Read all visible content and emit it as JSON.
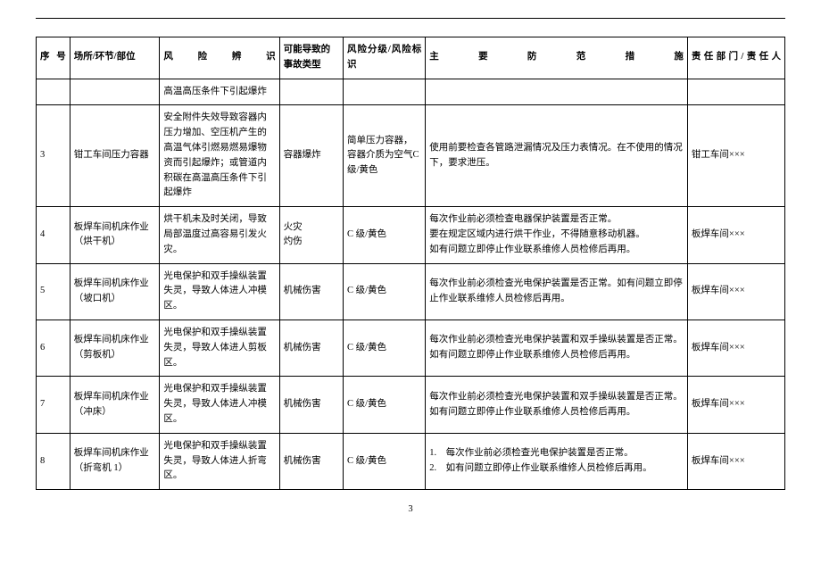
{
  "headers": {
    "seq": "序号",
    "place": "场所/环节/部位",
    "risk": "风险辨识",
    "accident": "可能导致的事故类型",
    "level": "风险分级/风险标识",
    "measure": "主要防范措施",
    "dept": "责任部门/责任人"
  },
  "rows": [
    {
      "seq": "",
      "place": "",
      "risk": "高温高压条件下引起爆炸",
      "accident": "",
      "level": "",
      "measure": "",
      "dept": ""
    },
    {
      "seq": "3",
      "place": "钳工车间压力容器",
      "risk": "安全附件失效导致容器内压力增加、空压机产生的高温气体引燃易燃易爆物资而引起爆炸；或管道内积碳在高温高压条件下引起爆炸",
      "accident": "容器爆炸",
      "level": "简单压力容器，容器介质为空气C 级/黄色",
      "measure": "使用前要检查各管路泄漏情况及压力表情况。在不使用的情况下，要求泄压。",
      "dept": "钳工车间×××"
    },
    {
      "seq": "4",
      "place": "板焊车间机床作业（烘干机）",
      "risk": "烘干机未及时关闭，导致局部温度过高容易引发火灾。",
      "accident": "火灾\n灼伤",
      "level": "C 级/黄色",
      "measure": "每次作业前必须检查电器保护装置是否正常。\n要在规定区域内进行烘干作业，不得随意移动机器。\n如有问题立即停止作业联系维修人员检修后再用。",
      "dept": "板焊车间×××"
    },
    {
      "seq": "5",
      "place": "板焊车间机床作业（坡口机）",
      "risk": "光电保护和双手操纵装置失灵，导致人体进人冲模区。",
      "accident": "机械伤害",
      "level": "C 级/黄色",
      "measure": "每次作业前必须检查光电保护装置是否正常。如有问题立即停止作业联系维修人员检修后再用。",
      "dept": "板焊车间×××"
    },
    {
      "seq": "6",
      "place": "板焊车间机床作业（剪板机）",
      "risk": "光电保护和双手操纵装置失灵，导致人体进人剪板区。",
      "accident": "机械伤害",
      "level": "C 级/黄色",
      "measure": "每次作业前必须检查光电保护装置和双手操纵装置是否正常。\n如有问题立即停止作业联系维修人员检修后再用。",
      "dept": "板焊车间×××"
    },
    {
      "seq": "7",
      "place": "板焊车间机床作业（冲床）",
      "risk": "光电保护和双手操纵装置失灵，导致人体进人冲模区。",
      "accident": "机械伤害",
      "level": "C 级/黄色",
      "measure": "每次作业前必须检查光电保护装置和双手操纵装置是否正常。\n如有问题立即停止作业联系维修人员检修后再用。",
      "dept": "板焊车间×××"
    },
    {
      "seq": "8",
      "place": "板焊车间机床作业（折弯机 1）",
      "risk": "光电保护和双手操纵装置失灵，导致人体进人折弯区。",
      "accident": "机械伤害",
      "level": "C 级/黄色",
      "measure": "1.　每次作业前必须检查光电保护装置是否正常。\n2.　如有问题立即停止作业联系维修人员检修后再用。",
      "dept": "板焊车间×××"
    }
  ],
  "pageNumber": "3"
}
